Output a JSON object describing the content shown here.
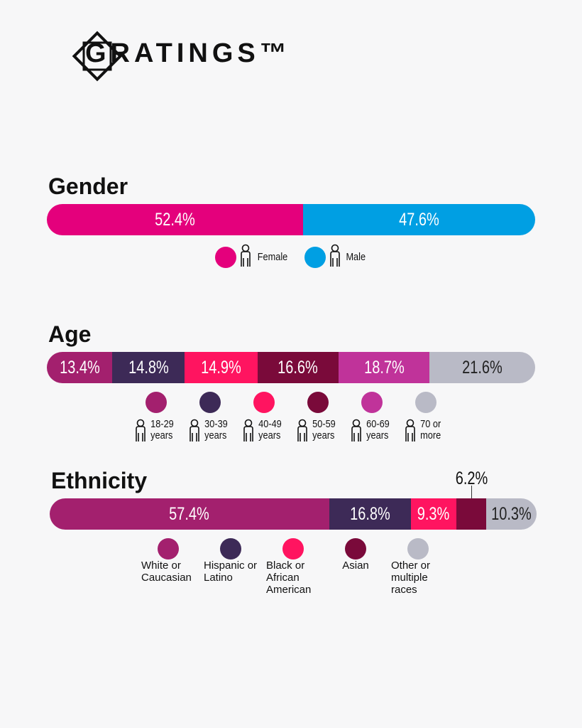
{
  "brand": "GRATINGS™",
  "chart_data": [
    {
      "type": "stacked-bar",
      "title": "Gender",
      "xlim": [
        0,
        100
      ],
      "series": [
        {
          "name": "Female",
          "color": "#e4007c",
          "values": [
            52.4
          ],
          "value_labels": [
            "52.4%"
          ]
        },
        {
          "name": "Male",
          "color": "#009fe3",
          "values": [
            47.6
          ],
          "value_labels": [
            "47.6%"
          ]
        }
      ]
    },
    {
      "type": "stacked-bar",
      "title": "Age",
      "xlim": [
        0,
        100
      ],
      "series": [
        {
          "name": "18-29 years",
          "color": "#a3206e",
          "values": [
            13.4
          ],
          "value_labels": [
            "13.4%"
          ]
        },
        {
          "name": "30-39 years",
          "color": "#3d2a57",
          "values": [
            14.8
          ],
          "value_labels": [
            "14.8%"
          ]
        },
        {
          "name": "40-49 years",
          "color": "#ff1460",
          "values": [
            14.9
          ],
          "value_labels": [
            "14.9%"
          ]
        },
        {
          "name": "50-59 years",
          "color": "#7a0a3a",
          "values": [
            16.6
          ],
          "value_labels": [
            "16.6%"
          ]
        },
        {
          "name": "60-69 years",
          "color": "#c0339a",
          "values": [
            18.7
          ],
          "value_labels": [
            "18.7%"
          ]
        },
        {
          "name": "70 or more",
          "color": "#b9bac6",
          "values": [
            21.6
          ],
          "value_labels": [
            "21.6%"
          ]
        }
      ]
    },
    {
      "type": "stacked-bar",
      "title": "Ethnicity",
      "xlim": [
        0,
        100
      ],
      "series": [
        {
          "name": "White or Caucasian",
          "color": "#a3206e",
          "values": [
            57.4
          ],
          "value_labels": [
            "57.4%"
          ]
        },
        {
          "name": "Hispanic or Latino",
          "color": "#3d2a57",
          "values": [
            16.8
          ],
          "value_labels": [
            "16.8%"
          ]
        },
        {
          "name": "Black or African American",
          "color": "#ff1460",
          "values": [
            9.3
          ],
          "value_labels": [
            "9.3%"
          ]
        },
        {
          "name": "Asian",
          "color": "#7a0a3a",
          "values": [
            6.2
          ],
          "value_labels": [
            "6.2%"
          ]
        },
        {
          "name": "Other or multiple races",
          "color": "#b9bac6",
          "values": [
            10.3
          ],
          "value_labels": [
            "10.3%"
          ]
        }
      ]
    }
  ]
}
